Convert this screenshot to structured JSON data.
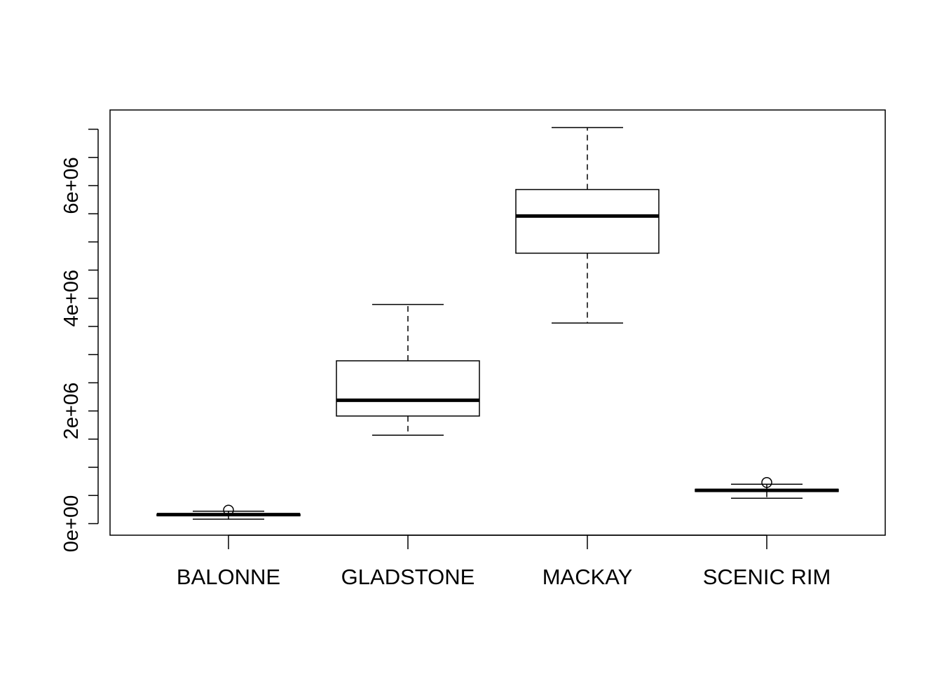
{
  "chart_data": {
    "type": "box",
    "title": "",
    "xlabel": "",
    "ylabel": "",
    "ylim": [
      -200000,
      7100000
    ],
    "y_ticks": [
      0,
      500000,
      1000000,
      1500000,
      2000000,
      2500000,
      3000000,
      3500000,
      4000000,
      4500000,
      5000000,
      5500000,
      6000000,
      6500000,
      7000000
    ],
    "y_tick_labels": [
      {
        "value": 0,
        "label": "0e+00"
      },
      {
        "value": 2000000,
        "label": "2e+06"
      },
      {
        "value": 4000000,
        "label": "4e+06"
      },
      {
        "value": 6000000,
        "label": "6e+06"
      }
    ],
    "grid": false,
    "categories": [
      "BALONNE",
      "GLADSTONE",
      "MACKAY",
      "SCENIC RIM"
    ],
    "boxes": [
      {
        "category": "BALONNE",
        "whisker_low": 80000,
        "q1": 140000,
        "median": 160000,
        "q3": 170000,
        "whisker_high": 220000,
        "outliers": [
          240000
        ]
      },
      {
        "category": "GLADSTONE",
        "whisker_low": 1570000,
        "q1": 1910000,
        "median": 2190000,
        "q3": 2890000,
        "whisker_high": 3890000,
        "outliers": []
      },
      {
        "category": "MACKAY",
        "whisker_low": 3560000,
        "q1": 4800000,
        "median": 5460000,
        "q3": 5930000,
        "whisker_high": 7030000,
        "outliers": []
      },
      {
        "category": "SCENIC RIM",
        "whisker_low": 450000,
        "q1": 570000,
        "median": 590000,
        "q3": 610000,
        "whisker_high": 700000,
        "outliers": [
          730000
        ]
      }
    ]
  }
}
